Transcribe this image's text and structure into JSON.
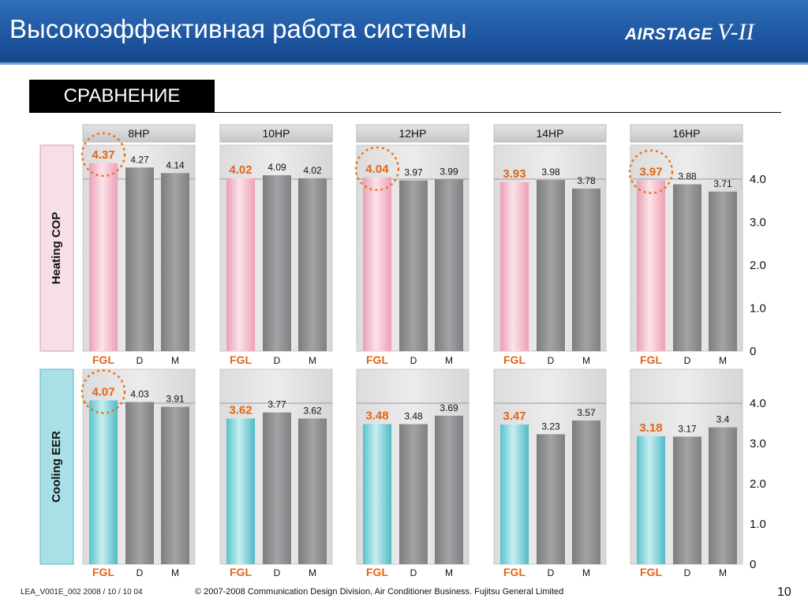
{
  "header": {
    "title": "Высокоэффективная работа системы",
    "logo_brand": "AIRSTAGE",
    "logo_version": "V-II"
  },
  "section_label": "СРАВНЕНИЕ",
  "footer": {
    "doc_id": "LEA_V001E_002  2008 / 10 / 10 04",
    "copyright": "© 2007-2008 Communication Design Division, Air Conditioner Business. Fujitsu General Limited",
    "page": "10"
  },
  "colors": {
    "header_bg": "#1d55a0",
    "fgl_heating": "#f2bccb",
    "fgl_cooling": "#7fd0d8",
    "competitor_bar": "#8e8e90",
    "highlight_value": "#e0661a"
  },
  "chart_data": [
    {
      "type": "bar",
      "title": "",
      "ylabel": "Heating COP",
      "ylim": [
        0,
        4.0
      ],
      "yticks": [
        "0",
        "1.0",
        "2.0",
        "3.0",
        "4.0"
      ],
      "panels": [
        "8HP",
        "10HP",
        "12HP",
        "14HP",
        "16HP"
      ],
      "categories": [
        "FGL",
        "D",
        "M"
      ],
      "series": [
        {
          "panel": "8HP",
          "values": [
            4.37,
            4.27,
            4.14
          ],
          "labels": [
            "4.37",
            "4.27",
            "4.14"
          ],
          "highlighted": true
        },
        {
          "panel": "10HP",
          "values": [
            4.02,
            4.09,
            4.02
          ],
          "labels": [
            "4.02",
            "4.09",
            "4.02"
          ],
          "highlighted": false
        },
        {
          "panel": "12HP",
          "values": [
            4.04,
            3.97,
            3.99
          ],
          "labels": [
            "4.04",
            "3.97",
            "3.99"
          ],
          "highlighted": true
        },
        {
          "panel": "14HP",
          "values": [
            3.93,
            3.98,
            3.78
          ],
          "labels": [
            "3.93",
            "3.98",
            "3.78"
          ],
          "highlighted": false
        },
        {
          "panel": "16HP",
          "values": [
            3.97,
            3.88,
            3.71
          ],
          "labels": [
            "3.97",
            "3.88",
            "3.71"
          ],
          "highlighted": true
        }
      ]
    },
    {
      "type": "bar",
      "title": "",
      "ylabel": "Cooling EER",
      "ylim": [
        0,
        4.0
      ],
      "yticks": [
        "0",
        "1.0",
        "2.0",
        "3.0",
        "4.0"
      ],
      "panels": [
        "8HP",
        "10HP",
        "12HP",
        "14HP",
        "16HP"
      ],
      "categories": [
        "FGL",
        "D",
        "M"
      ],
      "series": [
        {
          "panel": "8HP",
          "values": [
            4.07,
            4.03,
            3.91
          ],
          "labels": [
            "4.07",
            "4.03",
            "3.91"
          ],
          "highlighted": true
        },
        {
          "panel": "10HP",
          "values": [
            3.62,
            3.77,
            3.62
          ],
          "labels": [
            "3.62",
            "3.77",
            "3.62"
          ],
          "highlighted": false
        },
        {
          "panel": "12HP",
          "values": [
            3.48,
            3.48,
            3.69
          ],
          "labels": [
            "3.48",
            "3.48",
            "3.69"
          ],
          "highlighted": false
        },
        {
          "panel": "14HP",
          "values": [
            3.47,
            3.23,
            3.57
          ],
          "labels": [
            "3.47",
            "3.23",
            "3.57"
          ],
          "highlighted": false
        },
        {
          "panel": "16HP",
          "values": [
            3.18,
            3.17,
            3.4
          ],
          "labels": [
            "3.18",
            "3.17",
            "3.4"
          ],
          "highlighted": false
        }
      ]
    }
  ]
}
